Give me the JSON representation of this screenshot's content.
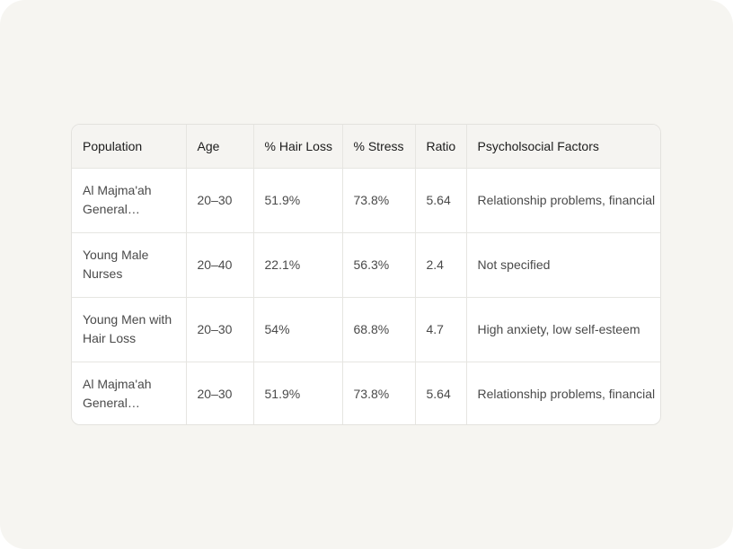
{
  "table": {
    "headers": [
      "Population",
      "Age",
      "% Hair Loss",
      "% Stress",
      "Ratio",
      "Psycholsocial Factors"
    ],
    "rows": [
      {
        "population": "Al Majma'ah General Popul…",
        "age": "20–30",
        "hair_loss": "51.9%",
        "stress": "73.8%",
        "ratio": "5.64",
        "factors": "Relationship problems, financial"
      },
      {
        "population": "Young Male Nurses",
        "age": "20–40",
        "hair_loss": "22.1%",
        "stress": "56.3%",
        "ratio": "2.4",
        "factors": "Not specified"
      },
      {
        "population": "Young Men with Hair Loss",
        "age": "20–30",
        "hair_loss": "54%",
        "stress": "68.8%",
        "ratio": "4.7",
        "factors": "High anxiety, low self-esteem"
      },
      {
        "population": "Al Majma'ah General Popul…",
        "age": "20–30",
        "hair_loss": "51.9%",
        "stress": "73.8%",
        "ratio": "5.64",
        "factors": "Relationship problems, financial"
      }
    ]
  }
}
